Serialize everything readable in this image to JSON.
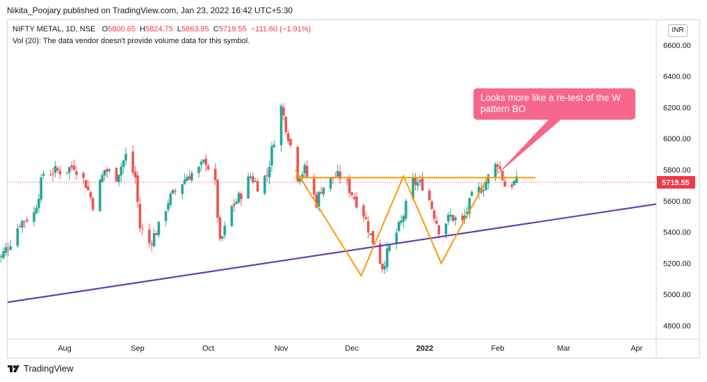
{
  "header": {
    "text": "Nikita_Poojary published on TradingView.com, Jan 23, 2022 16:42 UTC+5:30"
  },
  "legend": {
    "symbol": "NIFTY METAL, 1D, NSE",
    "open_label": "O",
    "open": "5800.65",
    "high_label": "H",
    "high": "5824.75",
    "low_label": "L",
    "low": "5663.85",
    "close_label": "C",
    "close": "5719.55",
    "change": "−111.60 (−1.91%)",
    "volume_note": "Vol (20): The data vendor doesn't provide volume data for this symbol."
  },
  "currency": "INR",
  "callout": {
    "text": "Looks more like a re-test of the W pattern BO"
  },
  "footer": {
    "brand": "TradingView"
  },
  "colors": {
    "up": "#26a69a",
    "down": "#ef5350",
    "trendline": "#673ab7",
    "pattern": "#ff9800",
    "callout": "#f7678a",
    "last_price": "#f23645"
  },
  "chart_data": {
    "type": "candlestick",
    "title": "NIFTY METAL, 1D, NSE",
    "y_ticks": [
      4800,
      5000,
      5200,
      5400,
      5600,
      5800,
      6000,
      6200,
      6400,
      6600
    ],
    "y_tick_labels": [
      "4800.00",
      "5000.00",
      "5200.00",
      "5400.00",
      "5600.00",
      "5800.00",
      "6000.00",
      "6200.00",
      "6400.00",
      "6600.00"
    ],
    "x_tick_labels": [
      {
        "date": "2021-08-01",
        "label": "Aug"
      },
      {
        "date": "2021-09-01",
        "label": "Sep"
      },
      {
        "date": "2021-10-01",
        "label": "Oct"
      },
      {
        "date": "2021-11-01",
        "label": "Nov"
      },
      {
        "date": "2021-12-01",
        "label": "Dec"
      },
      {
        "date": "2022-01-01",
        "label": "2022"
      },
      {
        "date": "2022-02-01",
        "label": "Feb"
      },
      {
        "date": "2022-03-01",
        "label": "Mar"
      },
      {
        "date": "2022-04-01",
        "label": "Apr"
      }
    ],
    "last_price": 5719.55,
    "last_price_label": "5719.55",
    "candle_anchors": [
      [
        "2021-07-01",
        5250
      ],
      [
        "2021-07-05",
        5240
      ],
      [
        "2021-07-09",
        5340
      ],
      [
        "2021-07-13",
        5460
      ],
      [
        "2021-07-19",
        5520
      ],
      [
        "2021-07-23",
        5780
      ],
      [
        "2021-07-28",
        5790
      ],
      [
        "2021-08-02",
        5800
      ],
      [
        "2021-08-05",
        5830
      ],
      [
        "2021-08-10",
        5710
      ],
      [
        "2021-08-13",
        5580
      ],
      [
        "2021-08-18",
        5800
      ],
      [
        "2021-08-23",
        5760
      ],
      [
        "2021-08-27",
        5890
      ],
      [
        "2021-08-31",
        5750
      ],
      [
        "2021-09-02",
        5430
      ],
      [
        "2021-09-06",
        5330
      ],
      [
        "2021-09-10",
        5430
      ],
      [
        "2021-09-14",
        5600
      ],
      [
        "2021-09-17",
        5660
      ],
      [
        "2021-09-22",
        5760
      ],
      [
        "2021-09-27",
        5800
      ],
      [
        "2021-09-30",
        5860
      ],
      [
        "2021-10-04",
        5700
      ],
      [
        "2021-10-06",
        5320
      ],
      [
        "2021-10-11",
        5560
      ],
      [
        "2021-10-14",
        5620
      ],
      [
        "2021-10-19",
        5760
      ],
      [
        "2021-10-22",
        5700
      ],
      [
        "2021-10-26",
        5770
      ],
      [
        "2021-10-29",
        6000
      ],
      [
        "2021-11-01",
        6200
      ],
      [
        "2021-11-04",
        6020
      ],
      [
        "2021-11-08",
        5760
      ],
      [
        "2021-11-11",
        5800
      ],
      [
        "2021-11-16",
        5590
      ],
      [
        "2021-11-18",
        5680
      ],
      [
        "2021-11-23",
        5750
      ],
      [
        "2021-11-27",
        5760
      ],
      [
        "2021-12-01",
        5650
      ],
      [
        "2021-12-06",
        5520
      ],
      [
        "2021-12-09",
        5380
      ],
      [
        "2021-12-14",
        5180
      ],
      [
        "2021-12-17",
        5300
      ],
      [
        "2021-12-22",
        5460
      ],
      [
        "2021-12-27",
        5720
      ],
      [
        "2022-01-01",
        5700
      ],
      [
        "2022-01-04",
        5560
      ],
      [
        "2022-01-07",
        5420
      ],
      [
        "2022-01-12",
        5500
      ],
      [
        "2022-01-17",
        5460
      ],
      [
        "2022-01-21",
        5620
      ],
      [
        "2022-01-26",
        5700
      ],
      [
        "2022-02-01",
        5850
      ],
      [
        "2022-02-04",
        5700
      ],
      [
        "2022-02-09",
        5720
      ]
    ],
    "trendline": {
      "start": [
        "2021-07-01",
        4950
      ],
      "end": [
        "2022-04-30",
        5580
      ]
    },
    "resistance_level": 5750,
    "w_pattern": [
      [
        "2021-11-07",
        5800
      ],
      [
        "2021-12-05",
        5120
      ],
      [
        "2021-12-23",
        5760
      ],
      [
        "2022-01-08",
        5200
      ],
      [
        "2022-01-28",
        5760
      ]
    ],
    "resistance_span": [
      [
        "2021-11-07",
        5750
      ],
      [
        "2022-02-17",
        5750
      ]
    ],
    "callout_pointer": [
      [
        "2022-01-31",
        5760
      ]
    ]
  }
}
